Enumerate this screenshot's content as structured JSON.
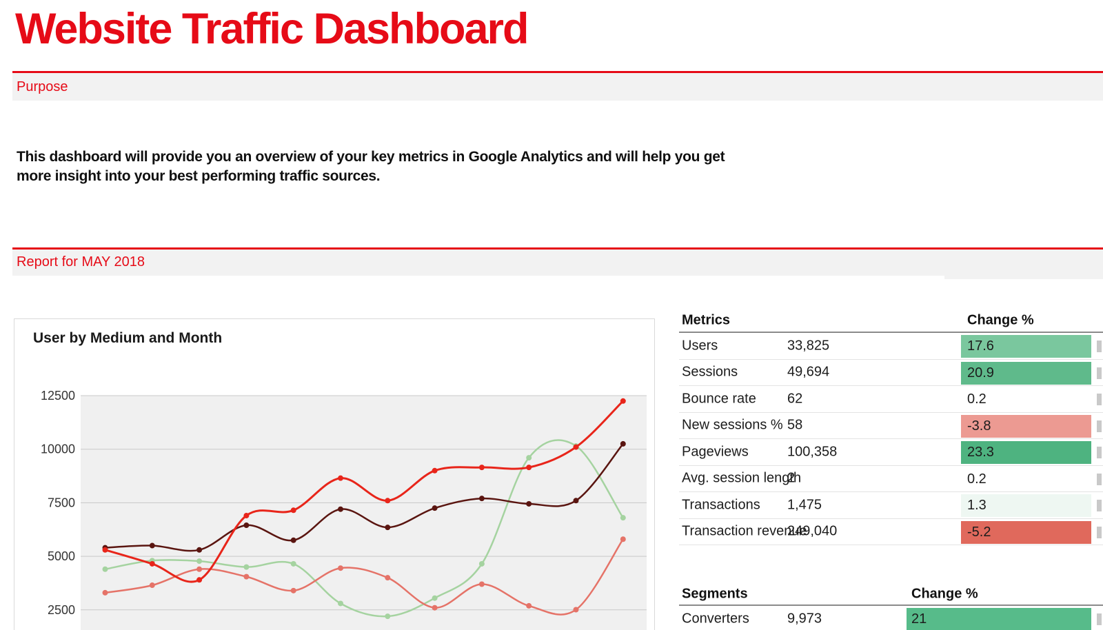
{
  "page_title": "Website Traffic Dashboard",
  "colors": {
    "accent_red": "#e60b17",
    "section_bar_bg": "#f2f2f2",
    "plot_bg": "#f0f0f0",
    "grid_line": "#c8c8c8",
    "tick_label": "#333333"
  },
  "purpose_section": {
    "label": "Purpose",
    "body_line1": "This dashboard will provide you an overview of your key metrics in Google Analytics and will help you get",
    "body_line2": "more insight into your best performing traffic sources."
  },
  "report_section": {
    "label": "Report for MAY 2018"
  },
  "chart_data": {
    "type": "line",
    "title": "User by Medium and Month",
    "xlabel": "",
    "ylabel": "",
    "yticks": [
      12500,
      10000,
      7500,
      5000,
      2500
    ],
    "ylim_top": 12500,
    "grid": true,
    "legend": "none (cut off)",
    "x_tick_labels": "cut off below screenshot edge",
    "points_per_series": 12,
    "series": [
      {
        "name": "series-bright-red",
        "color": "#e8251a",
        "values": [
          5300,
          4650,
          3900,
          6900,
          7150,
          8650,
          7600,
          9000,
          9150,
          9150,
          10100,
          12250
        ]
      },
      {
        "name": "series-dark-red",
        "color": "#5a1510",
        "values": [
          5400,
          5500,
          5300,
          6450,
          5750,
          7200,
          6350,
          7250,
          7700,
          7450,
          7600,
          10250
        ]
      },
      {
        "name": "series-light-green",
        "color": "#a5d3a0",
        "values": [
          4400,
          4800,
          4775,
          4500,
          4650,
          2800,
          2200,
          3050,
          4650,
          9600,
          10150,
          6800
        ]
      },
      {
        "name": "series-salmon",
        "color": "#e57368",
        "values": [
          3300,
          3650,
          4400,
          4050,
          3400,
          4450,
          4000,
          2600,
          3700,
          2690,
          2510,
          5800
        ]
      }
    ]
  },
  "metrics_table": {
    "title_header": "Metrics",
    "change_header": "Change %",
    "rows": [
      {
        "label": "Users",
        "value": "33,825",
        "change": "17.6",
        "change_bg": "#7ac79e"
      },
      {
        "label": "Sessions",
        "value": "49,694",
        "change": "20.9",
        "change_bg": "#5fba8b"
      },
      {
        "label": "Bounce rate",
        "value": "62",
        "change": "0.2",
        "change_bg": ""
      },
      {
        "label": "New sessions %",
        "value": "58",
        "change": "-3.8",
        "change_bg": "#ec9a92"
      },
      {
        "label": "Pageviews",
        "value": "100,358",
        "change": "23.3",
        "change_bg": "#4eb380"
      },
      {
        "label": "Avg. session length",
        "value": "2",
        "change": "0.2",
        "change_bg": ""
      },
      {
        "label": "Transactions",
        "value": "1,475",
        "change": "1.3",
        "change_bg": "#eef7f2"
      },
      {
        "label": "Transaction revenue",
        "value": "249,040",
        "change": "-5.2",
        "change_bg": "#e0695c"
      }
    ]
  },
  "segments_table": {
    "title_header": "Segments",
    "change_header": "Change %",
    "rows": [
      {
        "label": "Converters",
        "value": "9,973",
        "change": "21",
        "change_bg": "#57bb8a"
      }
    ]
  }
}
